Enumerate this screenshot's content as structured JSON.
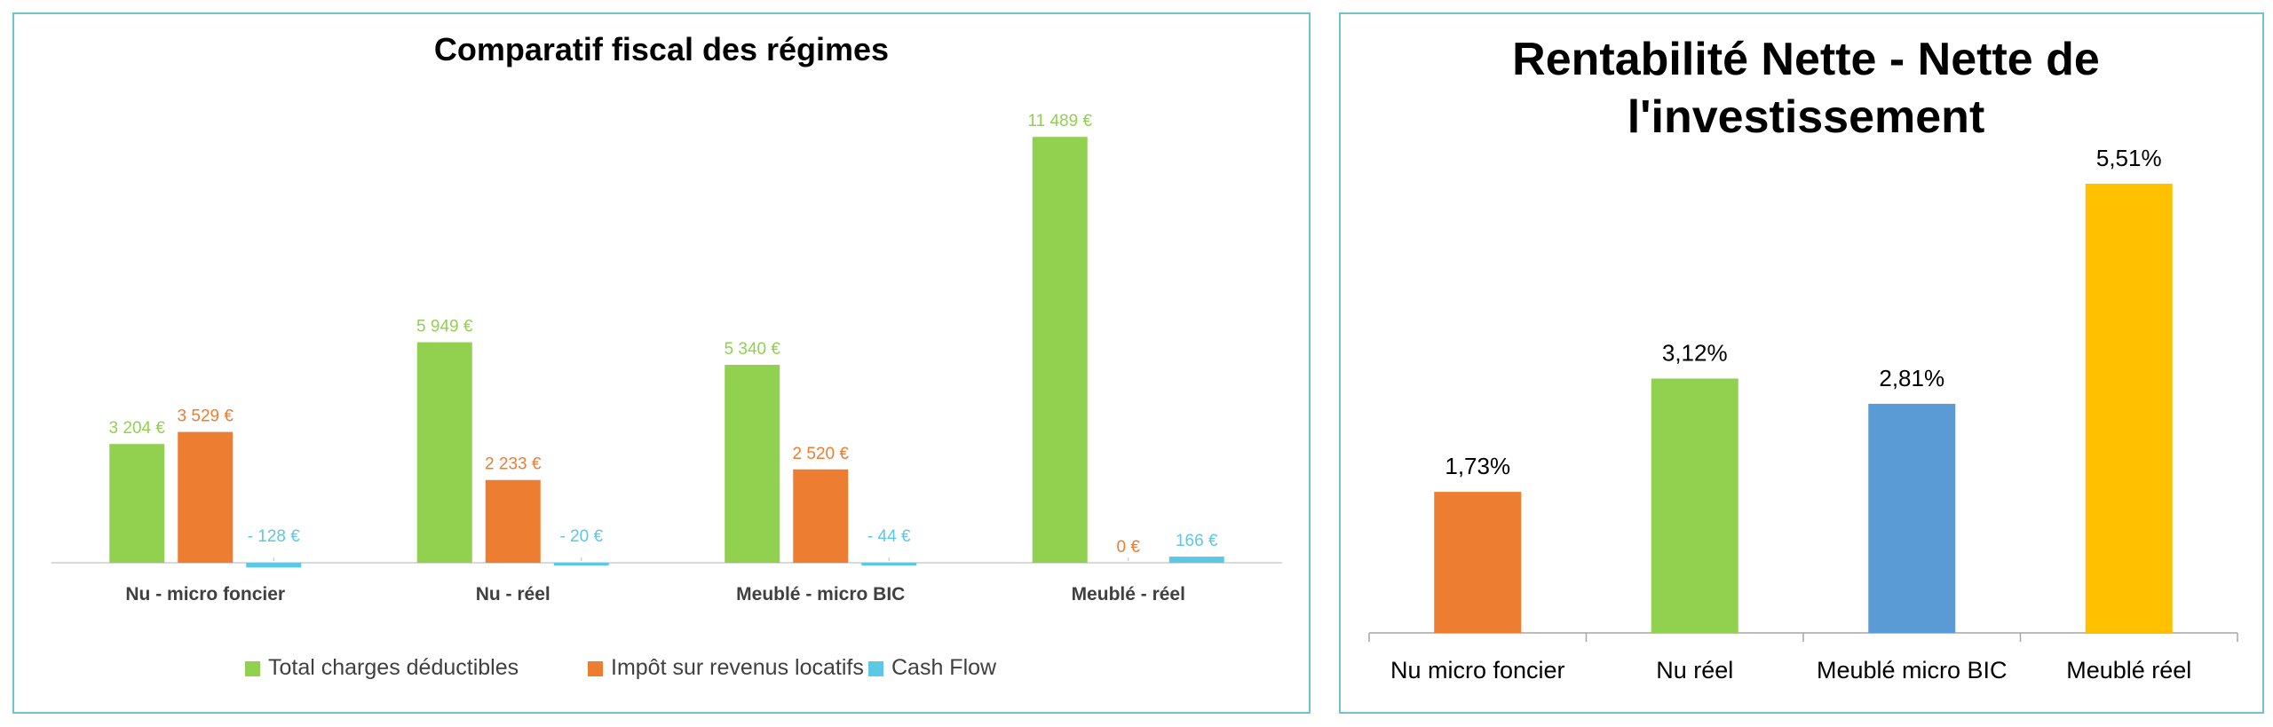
{
  "chart_data": [
    {
      "type": "bar",
      "title": "Comparatif fiscal des régimes",
      "xlabel": "",
      "ylabel": "",
      "categories": [
        "Nu - micro foncier",
        "Nu - réel",
        "Meublé - micro BIC",
        "Meublé - réel"
      ],
      "series": [
        {
          "name": "Total charges déductibles",
          "color": "#92d050",
          "values": [
            3204,
            5949,
            5340,
            11489
          ],
          "labels": [
            "3 204 €",
            "5 949 €",
            "5 340 €",
            "11 489 €"
          ]
        },
        {
          "name": "Impôt sur revenus locatifs",
          "color": "#ed7d31",
          "values": [
            3529,
            2233,
            2520,
            0
          ],
          "labels": [
            "3 529 €",
            "2 233 €",
            "2 520 €",
            "0 €"
          ]
        },
        {
          "name": "Cash Flow",
          "color": "#5bc8e6",
          "values": [
            -128,
            -20,
            -44,
            166
          ],
          "labels": [
            "- 128 €",
            "- 20 €",
            "- 44 €",
            "166 €"
          ]
        }
      ],
      "ylim": [
        -300,
        12500
      ],
      "legend_position": "bottom",
      "grid": false
    },
    {
      "type": "bar",
      "title": "Rentabilité Nette - Nette de l'investissement",
      "title_lines": [
        "Rentabilité Nette - Nette de",
        "l'investissement"
      ],
      "xlabel": "",
      "ylabel": "",
      "categories": [
        "Nu micro foncier",
        "Nu réel",
        "Meublé micro BIC",
        "Meublé réel"
      ],
      "values": [
        1.73,
        3.12,
        2.81,
        5.51
      ],
      "labels": [
        "1,73%",
        "3,12%",
        "2,81%",
        "5,51%"
      ],
      "colors": [
        "#ed7d31",
        "#92d050",
        "#5b9bd5",
        "#ffc000"
      ],
      "ylim": [
        0,
        6.5
      ],
      "legend_position": "none",
      "grid": false
    }
  ]
}
